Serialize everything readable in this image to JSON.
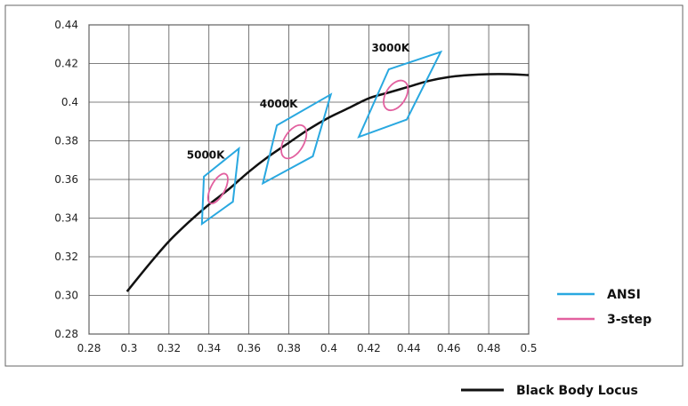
{
  "chart_data": {
    "type": "line",
    "title": "",
    "xlabel": "",
    "ylabel": "",
    "xlim": [
      0.28,
      0.5
    ],
    "ylim": [
      0.28,
      0.44
    ],
    "x_ticks": [
      0.28,
      0.3,
      0.32,
      0.34,
      0.36,
      0.38,
      0.4,
      0.42,
      0.44,
      0.46,
      0.48,
      0.5
    ],
    "x_tick_labels": [
      "0.28",
      "0.3",
      "0.32",
      "0.34",
      "0.36",
      "0.38",
      "0.4",
      "0.42",
      "0.44",
      "0.46",
      "0.48",
      "0.5"
    ],
    "y_ticks": [
      0.28,
      0.3,
      0.32,
      0.34,
      0.36,
      0.38,
      0.4,
      0.42,
      0.44
    ],
    "y_tick_labels": [
      "0.28",
      "0.30",
      "0.32",
      "0.34",
      "0.36",
      "0.38",
      "0.4",
      "0.42",
      "0.44"
    ],
    "grid": true,
    "legend": {
      "placement": "right",
      "entries": [
        {
          "label": "ANSI",
          "color": "#29a8e0"
        },
        {
          "label": "3-step",
          "color": "#e2609f"
        }
      ]
    },
    "locus_legend": {
      "label": "Black Body Locus",
      "color": "#111111",
      "placement": "bottom-right"
    },
    "black_body_locus": {
      "x": [
        0.299,
        0.31,
        0.32,
        0.33,
        0.34,
        0.35,
        0.36,
        0.37,
        0.38,
        0.39,
        0.4,
        0.41,
        0.42,
        0.43,
        0.44,
        0.45,
        0.46,
        0.47,
        0.48,
        0.49,
        0.5
      ],
      "y": [
        0.302,
        0.316,
        0.328,
        0.338,
        0.347,
        0.355,
        0.364,
        0.372,
        0.379,
        0.386,
        0.392,
        0.397,
        0.402,
        0.405,
        0.408,
        0.411,
        0.413,
        0.414,
        0.4145,
        0.4145,
        0.414
      ]
    },
    "ansi_regions": [
      {
        "label": "5000K",
        "points": [
          [
            0.3375,
            0.3615
          ],
          [
            0.355,
            0.376
          ],
          [
            0.352,
            0.3485
          ],
          [
            0.3365,
            0.337
          ]
        ]
      },
      {
        "label": "4000K",
        "points": [
          [
            0.374,
            0.388
          ],
          [
            0.401,
            0.404
          ],
          [
            0.392,
            0.372
          ],
          [
            0.367,
            0.358
          ]
        ]
      },
      {
        "label": "3000K",
        "points": [
          [
            0.43,
            0.417
          ],
          [
            0.456,
            0.426
          ],
          [
            0.439,
            0.391
          ],
          [
            0.415,
            0.382
          ]
        ]
      }
    ],
    "three_step_ellipses": [
      {
        "label": "5000K",
        "cx": 0.3445,
        "cy": 0.3553,
        "rx": 0.0035,
        "ry": 0.0085,
        "rotation_deg": 28
      },
      {
        "label": "4000K",
        "cx": 0.3825,
        "cy": 0.3795,
        "rx": 0.005,
        "ry": 0.0095,
        "rotation_deg": 30
      },
      {
        "label": "3000K",
        "cx": 0.4335,
        "cy": 0.4035,
        "rx": 0.005,
        "ry": 0.0085,
        "rotation_deg": 32
      }
    ]
  }
}
